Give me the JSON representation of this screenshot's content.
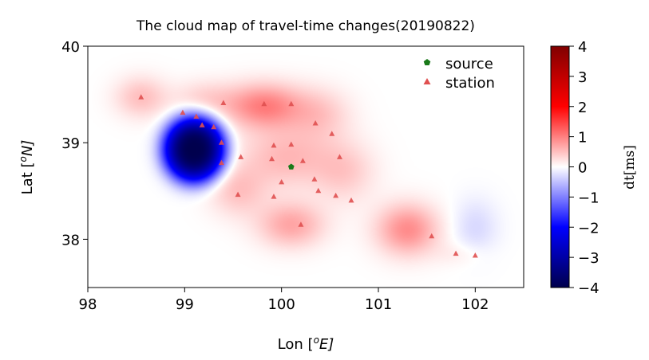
{
  "chart_data": {
    "type": "heatmap",
    "title": "The cloud map of travel-time changes(20190822)",
    "xlabel": "Lon [",
    "xlabel_unit": "o",
    "xlabel_tail": "E]",
    "ylabel": "Lat [",
    "ylabel_unit": "o",
    "ylabel_tail": "N]",
    "xlim": [
      98,
      102.5
    ],
    "ylim": [
      37.5,
      40
    ],
    "xticks": [
      "98",
      "99",
      "100",
      "101",
      "102"
    ],
    "xtick_values": [
      98,
      99,
      100,
      101,
      102
    ],
    "yticks": [
      "38",
      "39",
      "40"
    ],
    "ytick_values": [
      38,
      39,
      40
    ],
    "colorbar": {
      "label": "dt[ms]",
      "range": [
        -4,
        4
      ],
      "ticks": [
        "4",
        "3",
        "2",
        "1",
        "0",
        "−1",
        "−2",
        "−3",
        "−4"
      ],
      "tick_values": [
        4,
        3,
        2,
        1,
        0,
        -1,
        -2,
        -3,
        -4
      ],
      "colormap": "seismic",
      "colors": [
        "#00004c",
        "#0000ff",
        "#ffffff",
        "#ff0000",
        "#800000"
      ]
    },
    "legend": {
      "placement": "top-right",
      "entries": [
        {
          "label": "source",
          "marker": "pentagon",
          "color": "#1a7a1a"
        },
        {
          "label": "station",
          "marker": "triangle",
          "color": "#e05050"
        }
      ]
    },
    "source": {
      "lon": 100.1,
      "lat": 38.75
    },
    "stations": [
      {
        "lon": 98.55,
        "lat": 39.47
      },
      {
        "lon": 98.98,
        "lat": 39.31
      },
      {
        "lon": 99.12,
        "lat": 39.27
      },
      {
        "lon": 99.18,
        "lat": 39.18
      },
      {
        "lon": 99.3,
        "lat": 39.16
      },
      {
        "lon": 99.38,
        "lat": 39.0
      },
      {
        "lon": 99.4,
        "lat": 39.41
      },
      {
        "lon": 99.38,
        "lat": 38.79
      },
      {
        "lon": 99.58,
        "lat": 38.85
      },
      {
        "lon": 99.55,
        "lat": 38.46
      },
      {
        "lon": 99.82,
        "lat": 39.4
      },
      {
        "lon": 100.1,
        "lat": 39.4
      },
      {
        "lon": 99.92,
        "lat": 38.97
      },
      {
        "lon": 100.1,
        "lat": 38.98
      },
      {
        "lon": 99.9,
        "lat": 38.83
      },
      {
        "lon": 100.0,
        "lat": 38.59
      },
      {
        "lon": 99.92,
        "lat": 38.44
      },
      {
        "lon": 100.22,
        "lat": 38.81
      },
      {
        "lon": 100.34,
        "lat": 38.62
      },
      {
        "lon": 100.38,
        "lat": 38.5
      },
      {
        "lon": 100.35,
        "lat": 39.2
      },
      {
        "lon": 100.52,
        "lat": 39.09
      },
      {
        "lon": 100.6,
        "lat": 38.85
      },
      {
        "lon": 100.56,
        "lat": 38.45
      },
      {
        "lon": 100.72,
        "lat": 38.4
      },
      {
        "lon": 100.2,
        "lat": 38.15
      },
      {
        "lon": 101.55,
        "lat": 38.03
      },
      {
        "lon": 101.8,
        "lat": 37.85
      },
      {
        "lon": 102.0,
        "lat": 37.83
      }
    ],
    "anomalies": [
      {
        "lon": 99.1,
        "lat": 38.93,
        "dt": -4.0,
        "sx": 0.26,
        "sy": 0.28
      },
      {
        "lon": 98.55,
        "lat": 39.47,
        "dt": 0.5,
        "sx": 0.25,
        "sy": 0.2
      },
      {
        "lon": 99.2,
        "lat": 39.45,
        "dt": 0.35,
        "sx": 0.3,
        "sy": 0.18
      },
      {
        "lon": 99.82,
        "lat": 39.38,
        "dt": 1.0,
        "sx": 0.38,
        "sy": 0.22
      },
      {
        "lon": 100.4,
        "lat": 39.3,
        "dt": 0.4,
        "sx": 0.3,
        "sy": 0.25
      },
      {
        "lon": 100.05,
        "lat": 38.85,
        "dt": 0.55,
        "sx": 0.45,
        "sy": 0.3
      },
      {
        "lon": 99.55,
        "lat": 38.5,
        "dt": 0.45,
        "sx": 0.28,
        "sy": 0.25
      },
      {
        "lon": 100.65,
        "lat": 38.7,
        "dt": 0.4,
        "sx": 0.3,
        "sy": 0.3
      },
      {
        "lon": 100.1,
        "lat": 38.15,
        "dt": 0.7,
        "sx": 0.32,
        "sy": 0.22
      },
      {
        "lon": 101.3,
        "lat": 38.1,
        "dt": 0.9,
        "sx": 0.3,
        "sy": 0.25
      },
      {
        "lon": 102.0,
        "lat": 38.12,
        "dt": -0.3,
        "sx": 0.22,
        "sy": 0.28
      },
      {
        "lon": 101.85,
        "lat": 37.85,
        "dt": 0.15,
        "sx": 0.25,
        "sy": 0.12
      }
    ]
  }
}
